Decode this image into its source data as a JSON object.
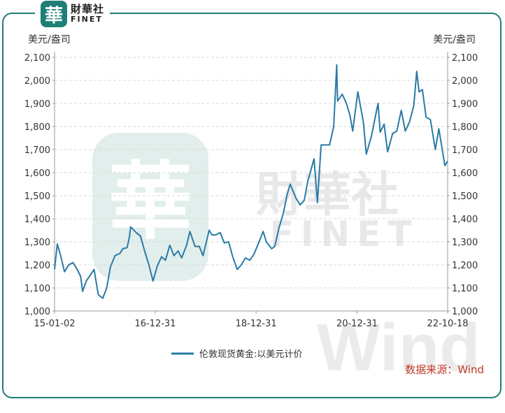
{
  "logo": {
    "mark": "華",
    "cn": "財華社",
    "en": "FINET"
  },
  "watermark": {
    "cn": "財華社",
    "en": "FINET",
    "mark": "華",
    "wind": "Wind"
  },
  "source": "数据来源：Wind",
  "colors": {
    "frame": "#1f7f77",
    "line": "#2a7ba6",
    "grid": "#d9d9d9",
    "source": "#c0392b"
  },
  "chart_data": {
    "type": "line",
    "ylabel_left": "美元/盎司",
    "ylabel_right": "美元/盎司",
    "ylim": [
      1000,
      2100
    ],
    "yticks": [
      1000,
      1100,
      1200,
      1300,
      1400,
      1500,
      1600,
      1700,
      1800,
      1900,
      2000,
      2100
    ],
    "ytick_labels": [
      "1,000",
      "1,100",
      "1,200",
      "1,300",
      "1,400",
      "1,500",
      "1,600",
      "1,700",
      "1,800",
      "1,900",
      "2,000",
      "2,100"
    ],
    "x_start": "2015-01-02",
    "x_end": "2022-10-18",
    "xticks": [
      {
        "date": "2015-01-02",
        "label": "15-01-02"
      },
      {
        "date": "2016-12-31",
        "label": "16-12-31"
      },
      {
        "date": "2018-12-31",
        "label": "18-12-31"
      },
      {
        "date": "2020-12-31",
        "label": "20-12-31"
      },
      {
        "date": "2022-10-18",
        "label": "22-10-18"
      }
    ],
    "grid": true,
    "legend_position": "bottom",
    "series": [
      {
        "name": "伦敦现货黄金:以美元计价",
        "x": [
          "2015-01-02",
          "2015-01-22",
          "2015-02-15",
          "2015-03-15",
          "2015-04-15",
          "2015-05-15",
          "2015-06-15",
          "2015-07-10",
          "2015-07-24",
          "2015-08-20",
          "2015-10-15",
          "2015-11-15",
          "2015-12-17",
          "2016-01-15",
          "2016-02-10",
          "2016-03-15",
          "2016-04-20",
          "2016-05-10",
          "2016-06-10",
          "2016-06-27",
          "2016-07-06",
          "2016-08-15",
          "2016-09-15",
          "2016-10-15",
          "2016-11-15",
          "2016-12-15",
          "2017-01-15",
          "2017-02-15",
          "2017-03-15",
          "2017-04-15",
          "2017-05-15",
          "2017-06-15",
          "2017-07-10",
          "2017-08-15",
          "2017-09-08",
          "2017-10-15",
          "2017-11-15",
          "2017-12-12",
          "2018-01-25",
          "2018-02-15",
          "2018-03-15",
          "2018-04-15",
          "2018-05-15",
          "2018-06-15",
          "2018-07-15",
          "2018-08-16",
          "2018-09-15",
          "2018-10-15",
          "2018-11-15",
          "2018-12-15",
          "2019-01-15",
          "2019-02-20",
          "2019-03-15",
          "2019-04-23",
          "2019-05-15",
          "2019-06-15",
          "2019-07-15",
          "2019-08-15",
          "2019-09-04",
          "2019-10-15",
          "2019-11-15",
          "2019-12-15",
          "2020-01-08",
          "2020-02-24",
          "2020-03-19",
          "2020-04-15",
          "2020-05-15",
          "2020-06-15",
          "2020-07-15",
          "2020-08-06",
          "2020-08-12",
          "2020-09-15",
          "2020-10-15",
          "2020-11-09",
          "2020-11-30",
          "2021-01-06",
          "2021-02-15",
          "2021-03-08",
          "2021-04-15",
          "2021-05-15",
          "2021-06-01",
          "2021-06-17",
          "2021-07-15",
          "2021-08-09",
          "2021-09-15",
          "2021-10-15",
          "2021-11-16",
          "2021-12-15",
          "2022-01-15",
          "2022-02-15",
          "2022-03-08",
          "2022-03-25",
          "2022-04-18",
          "2022-05-15",
          "2022-06-15",
          "2022-07-21",
          "2022-08-15",
          "2022-09-28",
          "2022-10-18"
        ],
        "y": [
          1180,
          1290,
          1240,
          1170,
          1200,
          1210,
          1180,
          1150,
          1085,
          1130,
          1180,
          1070,
          1055,
          1100,
          1190,
          1240,
          1250,
          1270,
          1275,
          1320,
          1365,
          1340,
          1325,
          1260,
          1200,
          1130,
          1195,
          1235,
          1220,
          1285,
          1240,
          1260,
          1230,
          1285,
          1345,
          1280,
          1280,
          1240,
          1350,
          1330,
          1330,
          1340,
          1295,
          1300,
          1235,
          1180,
          1200,
          1230,
          1220,
          1245,
          1290,
          1345,
          1300,
          1270,
          1280,
          1360,
          1420,
          1510,
          1550,
          1490,
          1460,
          1480,
          1560,
          1660,
          1470,
          1720,
          1720,
          1720,
          1800,
          2067,
          1910,
          1940,
          1900,
          1850,
          1780,
          1950,
          1820,
          1680,
          1760,
          1850,
          1900,
          1775,
          1810,
          1690,
          1770,
          1780,
          1870,
          1780,
          1820,
          1890,
          2039,
          1950,
          1960,
          1840,
          1830,
          1700,
          1790,
          1630,
          1650
        ]
      }
    ]
  }
}
